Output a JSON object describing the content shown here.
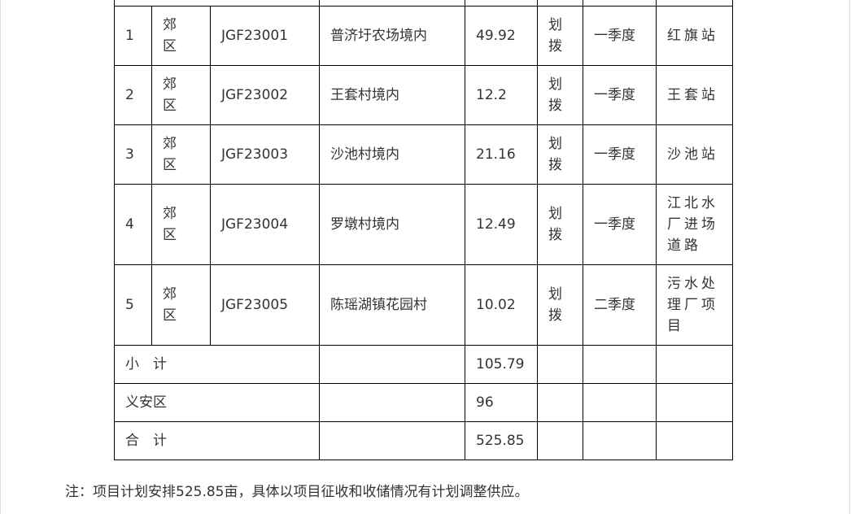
{
  "rows": [
    {
      "no": "1",
      "district": "郊区",
      "code": "JGF23001",
      "location": "普济圩农场境内",
      "area": "49.92",
      "method": "划拨",
      "quarter": "一季度",
      "project": "红旗站"
    },
    {
      "no": "2",
      "district": "郊区",
      "code": "JGF23002",
      "location": "王套村境内",
      "area": "12.2",
      "method": "划拨",
      "quarter": "一季度",
      "project": "王套站"
    },
    {
      "no": "3",
      "district": "郊区",
      "code": "JGF23003",
      "location": "沙池村境内",
      "area": "21.16",
      "method": "划拨",
      "quarter": "一季度",
      "project": "沙池站"
    },
    {
      "no": "4",
      "district": "郊区",
      "code": "JGF23004",
      "location": "罗墩村境内",
      "area": "12.49",
      "method": "划拨",
      "quarter": "一季度",
      "project": "江北水厂进场道路"
    },
    {
      "no": "5",
      "district": "郊区",
      "code": "JGF23005",
      "location": "陈瑶湖镇花园村",
      "area": "10.02",
      "method": "划拨",
      "quarter": "二季度",
      "project": "污水处理厂项目"
    }
  ],
  "summary": [
    {
      "label": "小　计",
      "area": "105.79"
    },
    {
      "label": "义安区",
      "area": "96"
    },
    {
      "label": "合　计",
      "area": "525.85"
    }
  ],
  "note": "注：项目计划安排525.85亩，具体以项目征收和收储情况有计划调整供应。"
}
